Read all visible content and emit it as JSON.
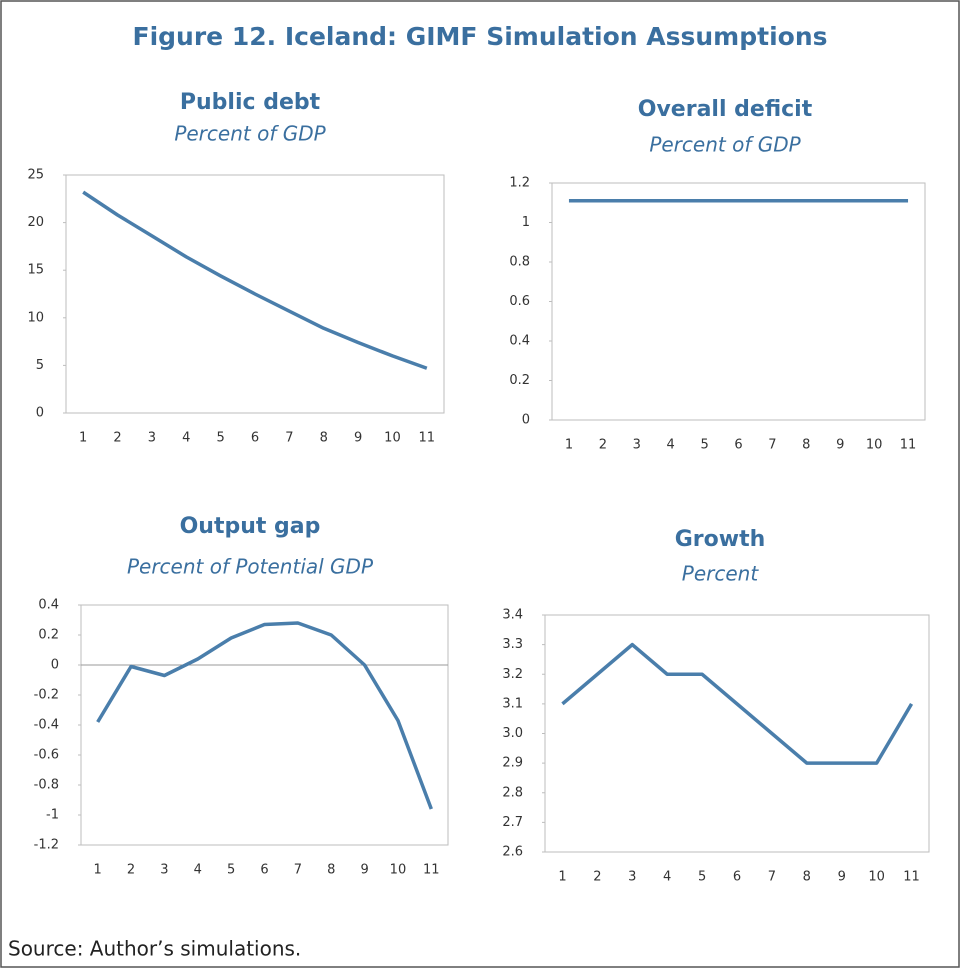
{
  "figure_title": "Figure 12. Iceland: GIMF Simulation Assumptions",
  "source": "Source: Author’s simulations.",
  "chart_data": [
    {
      "type": "line",
      "title": "Public debt",
      "subtitle": "Percent of GDP",
      "categories": [
        "1",
        "2",
        "3",
        "4",
        "5",
        "6",
        "7",
        "8",
        "9",
        "10",
        "11"
      ],
      "values": [
        23.2,
        20.8,
        18.6,
        16.4,
        14.4,
        12.5,
        10.7,
        8.9,
        7.4,
        6.0,
        4.7
      ],
      "color": "#4a7eab",
      "ylim": [
        0,
        25
      ],
      "yticks": [
        0,
        5,
        10,
        15,
        20,
        25
      ]
    },
    {
      "type": "line",
      "title": "Overall deficit",
      "subtitle": "Percent of GDP",
      "categories": [
        "1",
        "2",
        "3",
        "4",
        "5",
        "6",
        "7",
        "8",
        "9",
        "10",
        "11"
      ],
      "values": [
        1.11,
        1.11,
        1.11,
        1.11,
        1.11,
        1.11,
        1.11,
        1.11,
        1.11,
        1.11,
        1.11
      ],
      "color": "#4a7eab",
      "ylim": [
        0,
        1.2
      ],
      "yticks": [
        0,
        0.2,
        0.4,
        0.6,
        0.8,
        1,
        1.2
      ]
    },
    {
      "type": "line",
      "title": "Output gap",
      "subtitle": "Percent of Potential GDP",
      "categories": [
        "1",
        "2",
        "3",
        "4",
        "5",
        "6",
        "7",
        "8",
        "9",
        "10",
        "11"
      ],
      "values": [
        -0.38,
        -0.01,
        -0.07,
        0.04,
        0.18,
        0.27,
        0.28,
        0.2,
        0.0,
        -0.37,
        -0.96
      ],
      "color": "#4a7eab",
      "ylim": [
        -1.2,
        0.4
      ],
      "yticks": [
        -1.2,
        -1,
        -0.8,
        -0.6,
        -0.4,
        -0.2,
        0,
        0.2,
        0.4
      ]
    },
    {
      "type": "line",
      "title": "Growth",
      "subtitle": "Percent",
      "categories": [
        "1",
        "2",
        "3",
        "4",
        "5",
        "6",
        "7",
        "8",
        "9",
        "10",
        "11"
      ],
      "values": [
        3.1,
        3.2,
        3.3,
        3.2,
        3.2,
        3.1,
        3.0,
        2.9,
        2.9,
        2.9,
        3.1
      ],
      "color": "#4a7eab",
      "ylim": [
        2.6,
        3.4
      ],
      "yticks": [
        2.6,
        2.7,
        2.8,
        2.9,
        {
          "value": 3,
          "label": "3.0"
        },
        3.1,
        3.2,
        3.3,
        3.4
      ]
    }
  ]
}
